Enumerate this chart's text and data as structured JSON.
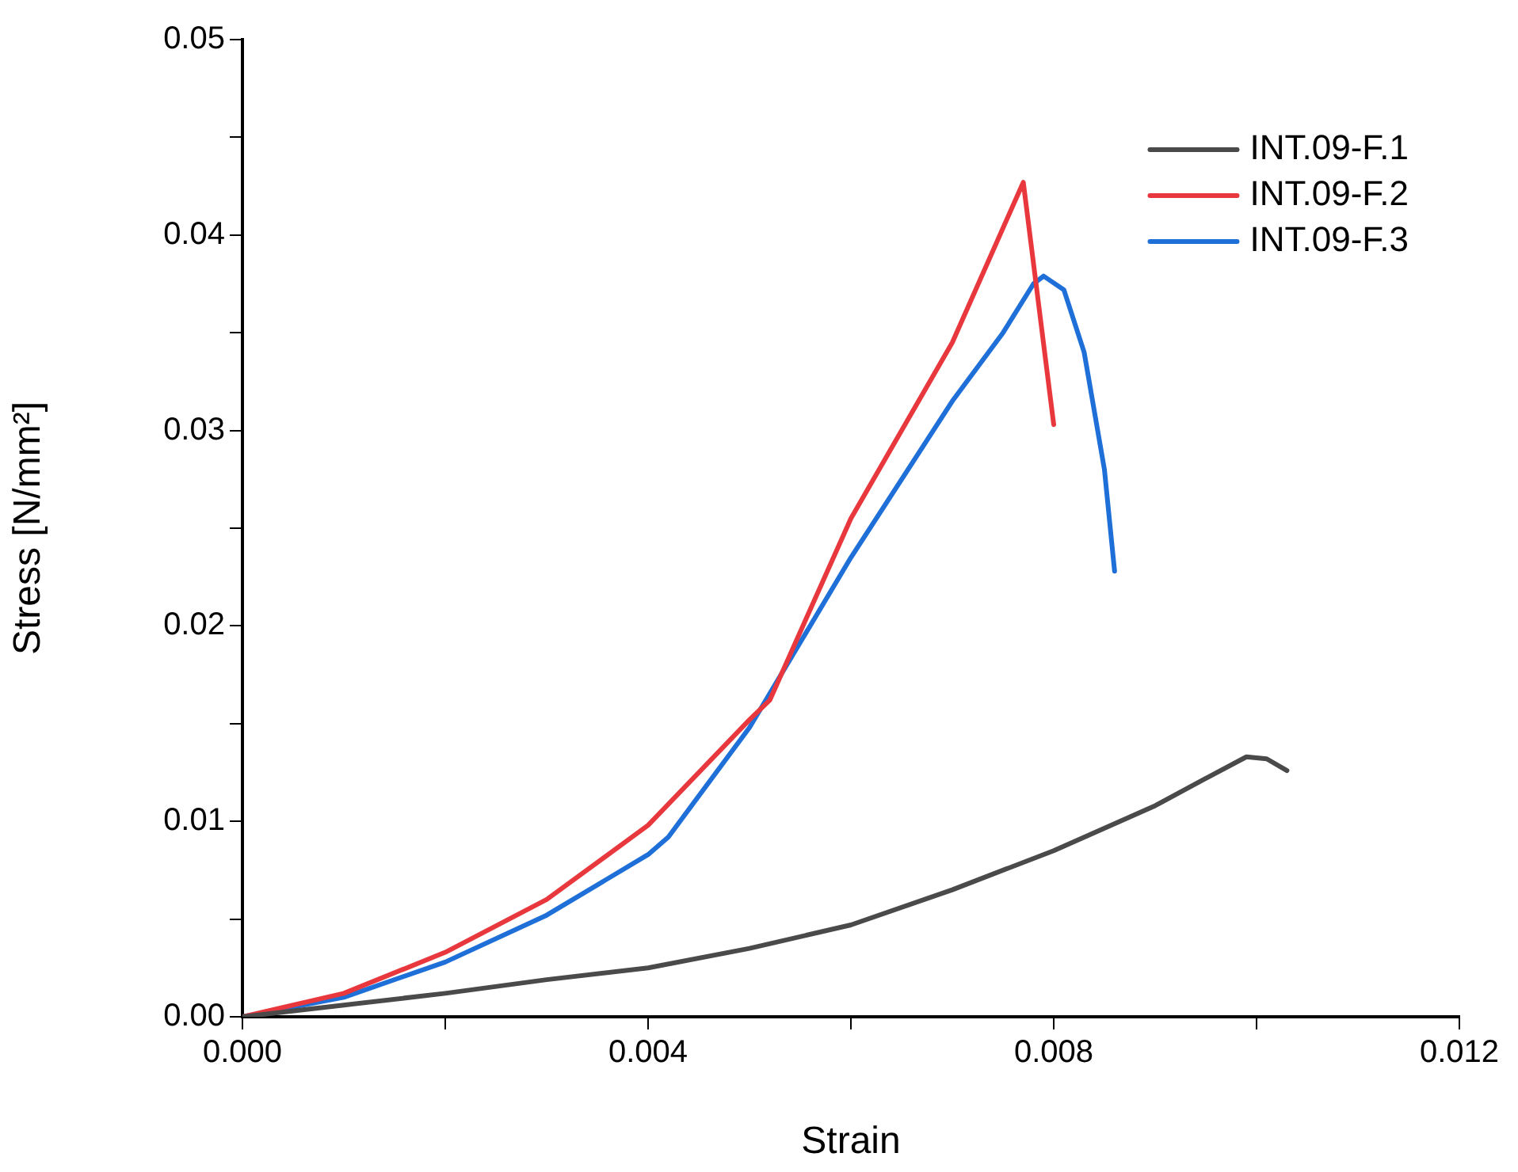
{
  "chart_data": {
    "type": "line",
    "xlabel": "Strain",
    "ylabel": "Stress [N/mm²]",
    "xlim": [
      0,
      0.012
    ],
    "ylim": [
      0,
      0.05
    ],
    "xticks": [
      {
        "value": 0,
        "label": "0.000"
      },
      {
        "value": 0.002,
        "label": null
      },
      {
        "value": 0.004,
        "label": "0.004"
      },
      {
        "value": 0.006,
        "label": null
      },
      {
        "value": 0.008,
        "label": "0.008"
      },
      {
        "value": 0.01,
        "label": null
      },
      {
        "value": 0.012,
        "label": "0.012"
      }
    ],
    "yticks": [
      {
        "value": 0,
        "label": "0.00"
      },
      {
        "value": 0.005,
        "label": null
      },
      {
        "value": 0.01,
        "label": "0.01"
      },
      {
        "value": 0.015,
        "label": null
      },
      {
        "value": 0.02,
        "label": "0.02"
      },
      {
        "value": 0.025,
        "label": null
      },
      {
        "value": 0.03,
        "label": "0.03"
      },
      {
        "value": 0.035,
        "label": null
      },
      {
        "value": 0.04,
        "label": "0.04"
      },
      {
        "value": 0.045,
        "label": null
      },
      {
        "value": 0.05,
        "label": "0.05"
      }
    ],
    "grid": false,
    "legend": "top right",
    "marker": "none",
    "line_style": "solid",
    "series": [
      {
        "name": "INT.09-F.1",
        "color": "#4a4a4a",
        "x": [
          0,
          0.001,
          0.002,
          0.003,
          0.004,
          0.005,
          0.006,
          0.007,
          0.008,
          0.009,
          0.0095,
          0.0099,
          0.0101,
          0.0103
        ],
        "values": [
          0,
          0.0006,
          0.0012,
          0.0019,
          0.0025,
          0.0035,
          0.0047,
          0.0065,
          0.0085,
          0.0108,
          0.0122,
          0.0133,
          0.0132,
          0.0126
        ]
      },
      {
        "name": "INT.09-F.2",
        "color": "#e8383d",
        "x": [
          0,
          0.001,
          0.002,
          0.003,
          0.004,
          0.005,
          0.0052,
          0.006,
          0.007,
          0.0077,
          0.008
        ],
        "values": [
          0,
          0.0012,
          0.0033,
          0.006,
          0.0098,
          0.0152,
          0.0162,
          0.0255,
          0.0345,
          0.0427,
          0.0303
        ]
      },
      {
        "name": "INT.09-F.3",
        "color": "#1f6fd8",
        "x": [
          0,
          0.001,
          0.002,
          0.003,
          0.004,
          0.0042,
          0.005,
          0.006,
          0.007,
          0.0075,
          0.0078,
          0.0079,
          0.0081,
          0.0083,
          0.0085,
          0.0086
        ],
        "values": [
          0,
          0.001,
          0.0028,
          0.0052,
          0.0083,
          0.0092,
          0.0148,
          0.0235,
          0.0315,
          0.035,
          0.0375,
          0.0379,
          0.0372,
          0.034,
          0.028,
          0.0228
        ]
      }
    ]
  }
}
